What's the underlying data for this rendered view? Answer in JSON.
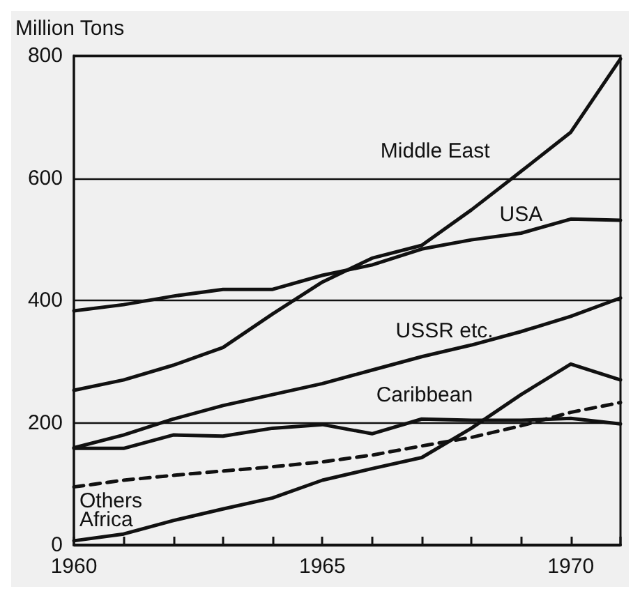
{
  "chart_data": {
    "type": "line",
    "ylabel": "Million Tons",
    "x": [
      1960,
      1961,
      1962,
      1963,
      1964,
      1965,
      1966,
      1967,
      1968,
      1969,
      1970,
      1971
    ],
    "xlim": [
      1960,
      1971
    ],
    "xticks": [
      1960,
      {
        "value": 1961,
        "label": null
      },
      {
        "value": 1962,
        "label": null
      },
      {
        "value": 1963,
        "label": null
      },
      {
        "value": 1964,
        "label": null
      },
      1965,
      {
        "value": 1966,
        "label": null
      },
      {
        "value": 1967,
        "label": null
      },
      {
        "value": 1968,
        "label": null
      },
      {
        "value": 1969,
        "label": null
      },
      1970,
      {
        "value": 1971,
        "label": null
      }
    ],
    "ylim": [
      0,
      800
    ],
    "yticks": [
      0,
      200,
      400,
      600,
      800
    ],
    "grid": "y",
    "legend": false,
    "marker": "none",
    "line_style": "solid",
    "series": [
      {
        "name": "Middle East",
        "color": "#111111",
        "values": [
          253,
          270,
          294,
          323,
          378,
          430,
          469,
          490,
          548,
          611,
          675,
          795
        ]
      },
      {
        "name": "USA",
        "color": "#111111",
        "values": [
          383,
          393,
          407,
          418,
          418,
          441,
          458,
          484,
          499,
          510,
          533,
          531
        ]
      },
      {
        "name": "USSR etc.",
        "color": "#111111",
        "values": [
          159,
          180,
          206,
          228,
          246,
          264,
          286,
          308,
          327,
          349,
          374,
          404
        ]
      },
      {
        "name": "Caribbean",
        "color": "#111111",
        "values": [
          158,
          158,
          180,
          178,
          191,
          197,
          182,
          206,
          204,
          204,
          207,
          198
        ]
      },
      {
        "name": "Others",
        "color": "#111111",
        "line_style": "dashed",
        "values": [
          95,
          106,
          114,
          121,
          128,
          136,
          147,
          162,
          176,
          195,
          217,
          233
        ]
      },
      {
        "name": "Africa",
        "color": "#111111",
        "values": [
          7,
          18,
          40,
          59,
          77,
          106,
          125,
          143,
          191,
          246,
          296,
          270
        ]
      }
    ]
  }
}
